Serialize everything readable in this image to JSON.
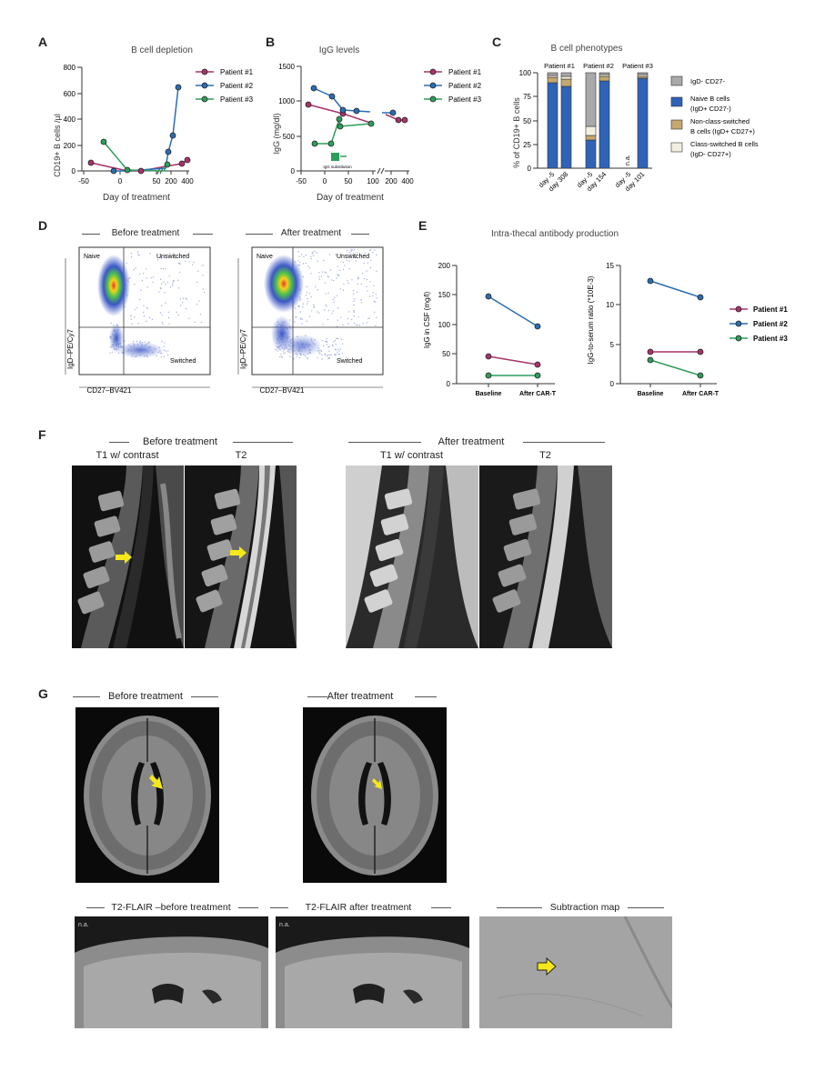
{
  "panels": {
    "A": "A",
    "B": "B",
    "C": "C",
    "D": "D",
    "E": "E",
    "F": "F",
    "G": "G"
  },
  "colors": {
    "p1": "#a8336a",
    "p2": "#2a6db5",
    "p3": "#2e9e5b",
    "gray": "#a9a9a9",
    "naive": "#2f63b8",
    "ncs": "#c4a870",
    "cs": "#f3eee0"
  },
  "chartA": {
    "title": "B cell depletion",
    "ylabel": "CD19+ B cells /µl",
    "xlabel": "Day of treatment",
    "yticks": [
      "0",
      "200",
      "400",
      "600",
      "800"
    ],
    "xticks": [
      "-50",
      "0",
      "50",
      "200",
      "400"
    ],
    "legend": [
      "Patient #1",
      "Patient #2",
      "Patient #3"
    ]
  },
  "chartB": {
    "title": "IgG levels",
    "ylabel": "IgG (mg/dl)",
    "xlabel": "Day of treatment",
    "yticks": [
      "0",
      "500",
      "1000",
      "1500"
    ],
    "xticks": [
      "-50",
      "0",
      "50",
      "100",
      "200",
      "400"
    ],
    "legend": [
      "Patient #1",
      "Patient #2",
      "Patient #3"
    ],
    "annot": "IgG substitution"
  },
  "chartC": {
    "title": "B cell phenotypes",
    "ylabel": "% of CD19+ B cells",
    "yticks": [
      "0",
      "25",
      "50",
      "75",
      "100"
    ],
    "groups": [
      "Patient #1",
      "Patient #2",
      "Patient #3"
    ],
    "xticks": [
      "day -5",
      "day 308",
      "day -5",
      "day 154",
      "day -5",
      "day 101"
    ],
    "na": "n.a.",
    "legend": [
      {
        "l1": "IgD- CD27-",
        "l2": ""
      },
      {
        "l1": "Naive B cells",
        "l2": "(IgD+ CD27-)"
      },
      {
        "l1": "Non-class-switched",
        "l2": "B cells (IgD+ CD27+)"
      },
      {
        "l1": "Class-switched B cells",
        "l2": "(IgD- CD27+)"
      }
    ]
  },
  "flow": {
    "before": "Before treatment",
    "after": "After treatment",
    "ylabel": "IgD–PE/Cy7",
    "xlabel": "CD27–BV421",
    "q": {
      "naive": "Naive",
      "unswitched": "Unswitched",
      "switched": "Switched"
    }
  },
  "chartE": {
    "title": "Intra-thecal antibody production",
    "left": {
      "ylabel": "IgG in CSF (mg/l)",
      "yticks": [
        "0",
        "50",
        "100",
        "150",
        "200"
      ]
    },
    "right": {
      "ylabel": "IgG-to-serum ratio (*10E-3)",
      "yticks": [
        "0",
        "5",
        "10",
        "15"
      ]
    },
    "xticks": [
      "Baseline",
      "After CAR-T"
    ],
    "legend": [
      "Patient #1",
      "Patient #2",
      "Patient #3"
    ]
  },
  "panelF": {
    "before": "Before treatment",
    "after": "After treatment",
    "t1": "T1 w/ contrast",
    "t2": "T2"
  },
  "panelG": {
    "before": "Before treatment",
    "after": "After treatment",
    "f1": "T2-FLAIR –before treatment",
    "f2": "T2-FLAIR after treatment",
    "sub": "Subtraction map",
    "na": "n.a."
  }
}
